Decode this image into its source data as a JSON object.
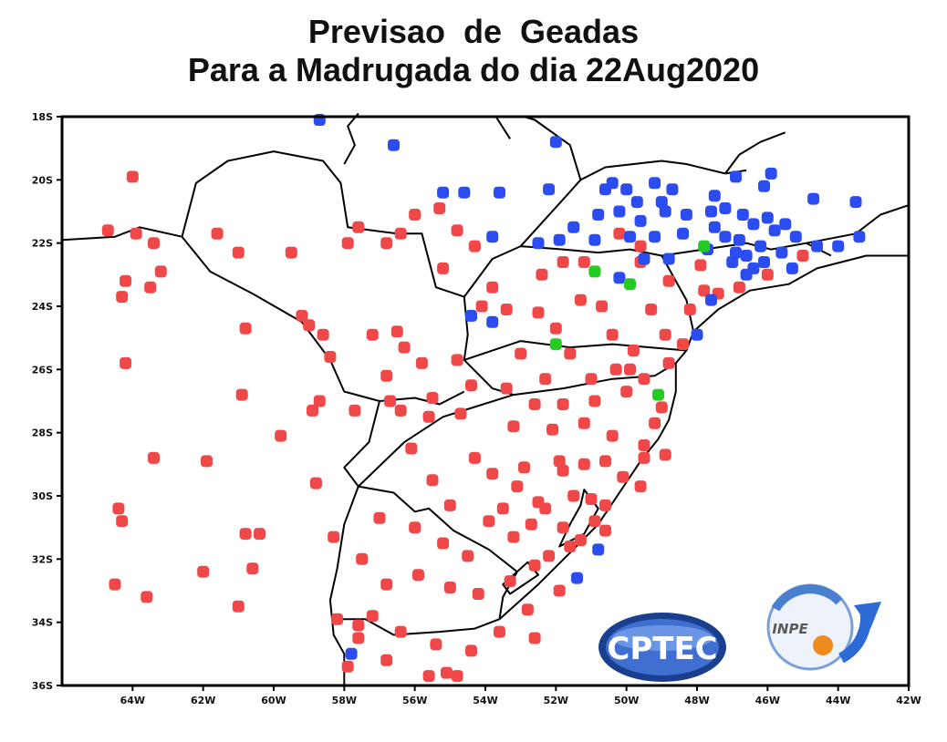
{
  "title": {
    "line1": "Previsao  de  Geadas",
    "line2": "Para a Madrugada do dia 22Aug2020"
  },
  "colors": {
    "frost": "#f04848",
    "no_frost": "#2a4cf0",
    "green": "#22cc22",
    "border": "#000000"
  },
  "axes": {
    "lon_ticks": [
      "64W",
      "62W",
      "60W",
      "58W",
      "56W",
      "54W",
      "52W",
      "50W",
      "48W",
      "46W",
      "44W",
      "42W"
    ],
    "lat_ticks": [
      "18S",
      "20S",
      "22S",
      "24S",
      "26S",
      "28S",
      "30S",
      "32S",
      "34S",
      "36S"
    ],
    "lon_range": [
      -66,
      -42
    ],
    "lat_range": [
      -36.5,
      -18.5
    ]
  },
  "logos": {
    "cptec": "CPTEC",
    "inpe": "INPE"
  },
  "chart_data": {
    "type": "scatter",
    "stations_red": [
      [
        -64.0,
        -20.4
      ],
      [
        -63.9,
        -22.2
      ],
      [
        -63.4,
        -22.5
      ],
      [
        -63.2,
        -23.4
      ],
      [
        -64.7,
        -22.1
      ],
      [
        -63.5,
        -23.9
      ],
      [
        -64.2,
        -23.7
      ],
      [
        -64.3,
        -24.2
      ],
      [
        -61.0,
        -22.8
      ],
      [
        -61.6,
        -22.2
      ],
      [
        -64.2,
        -26.3
      ],
      [
        -63.4,
        -29.3
      ],
      [
        -64.4,
        -30.9
      ],
      [
        -64.3,
        -31.3
      ],
      [
        -64.5,
        -33.3
      ],
      [
        -63.6,
        -33.7
      ],
      [
        -61.9,
        -29.4
      ],
      [
        -62.0,
        -32.9
      ],
      [
        -60.8,
        -31.7
      ],
      [
        -60.4,
        -31.7
      ],
      [
        -60.6,
        -32.8
      ],
      [
        -61.0,
        -34.0
      ],
      [
        -60.9,
        -27.3
      ],
      [
        -60.8,
        -25.2
      ],
      [
        -59.5,
        -22.8
      ],
      [
        -59.2,
        -24.8
      ],
      [
        -58.6,
        -25.4
      ],
      [
        -59.8,
        -28.6
      ],
      [
        -58.9,
        -27.8
      ],
      [
        -58.7,
        -27.5
      ],
      [
        -59.0,
        -25.1
      ],
      [
        -57.6,
        -22.0
      ],
      [
        -56.0,
        -21.6
      ],
      [
        -55.3,
        -21.4
      ],
      [
        -54.8,
        -22.1
      ],
      [
        -56.4,
        -22.2
      ],
      [
        -57.9,
        -22.5
      ],
      [
        -56.8,
        -22.5
      ],
      [
        -54.3,
        -22.6
      ],
      [
        -55.2,
        -23.3
      ],
      [
        -53.8,
        -23.9
      ],
      [
        -54.1,
        -24.5
      ],
      [
        -56.5,
        -25.3
      ],
      [
        -57.2,
        -25.4
      ],
      [
        -56.3,
        -25.8
      ],
      [
        -55.8,
        -26.3
      ],
      [
        -54.8,
        -26.2
      ],
      [
        -56.8,
        -26.7
      ],
      [
        -56.7,
        -27.5
      ],
      [
        -55.5,
        -27.4
      ],
      [
        -54.4,
        -27.0
      ],
      [
        -54.7,
        -27.9
      ],
      [
        -57.7,
        -27.8
      ],
      [
        -56.4,
        -27.8
      ],
      [
        -55.6,
        -28.0
      ],
      [
        -53.4,
        -24.6
      ],
      [
        -52.5,
        -24.7
      ],
      [
        -51.3,
        -24.3
      ],
      [
        -50.7,
        -24.5
      ],
      [
        -52.0,
        -25.2
      ],
      [
        -53.0,
        -26.0
      ],
      [
        -51.6,
        -26.0
      ],
      [
        -50.4,
        -25.4
      ],
      [
        -49.8,
        -25.9
      ],
      [
        -50.3,
        -26.5
      ],
      [
        -51.0,
        -26.8
      ],
      [
        -52.3,
        -26.8
      ],
      [
        -53.4,
        -27.1
      ],
      [
        -52.6,
        -27.6
      ],
      [
        -51.8,
        -27.6
      ],
      [
        -50.9,
        -27.5
      ],
      [
        -49.5,
        -26.8
      ],
      [
        -49.0,
        -27.7
      ],
      [
        -48.8,
        -26.3
      ],
      [
        -50.0,
        -27.2
      ],
      [
        -53.2,
        -28.3
      ],
      [
        -52.1,
        -28.4
      ],
      [
        -51.2,
        -28.2
      ],
      [
        -50.4,
        -28.6
      ],
      [
        -49.5,
        -28.9
      ],
      [
        -48.9,
        -29.2
      ],
      [
        -54.3,
        -29.3
      ],
      [
        -53.8,
        -29.8
      ],
      [
        -52.9,
        -29.6
      ],
      [
        -51.8,
        -29.7
      ],
      [
        -51.2,
        -29.5
      ],
      [
        -50.6,
        -29.4
      ],
      [
        -50.1,
        -29.9
      ],
      [
        -49.6,
        -30.2
      ],
      [
        -55.0,
        -30.8
      ],
      [
        -53.5,
        -30.9
      ],
      [
        -52.5,
        -30.7
      ],
      [
        -51.5,
        -30.5
      ],
      [
        -50.9,
        -31.3
      ],
      [
        -51.8,
        -31.5
      ],
      [
        -53.2,
        -31.8
      ],
      [
        -54.5,
        -32.4
      ],
      [
        -55.2,
        -32.0
      ],
      [
        -56.0,
        -31.5
      ],
      [
        -57.0,
        -31.2
      ],
      [
        -57.5,
        -32.5
      ],
      [
        -56.8,
        -33.3
      ],
      [
        -55.9,
        -33.0
      ],
      [
        -55.0,
        -33.4
      ],
      [
        -54.2,
        -33.6
      ],
      [
        -53.3,
        -33.2
      ],
      [
        -52.8,
        -34.1
      ],
      [
        -57.6,
        -34.6
      ],
      [
        -56.4,
        -34.8
      ],
      [
        -55.4,
        -35.2
      ],
      [
        -54.4,
        -35.4
      ],
      [
        -56.8,
        -35.7
      ],
      [
        -55.6,
        -36.2
      ],
      [
        -55.1,
        -36.1
      ],
      [
        -54.8,
        -36.2
      ],
      [
        -57.9,
        -35.9
      ],
      [
        -57.2,
        -34.3
      ],
      [
        -53.6,
        -34.8
      ],
      [
        -52.6,
        -32.7
      ],
      [
        -51.9,
        -33.5
      ],
      [
        -52.6,
        -35.0
      ],
      [
        -49.6,
        -23.1
      ],
      [
        -48.8,
        -23.7
      ],
      [
        -48.2,
        -24.6
      ],
      [
        -47.8,
        -24.0
      ],
      [
        -49.3,
        -24.6
      ],
      [
        -48.9,
        -25.4
      ],
      [
        -48.4,
        -25.7
      ],
      [
        -49.6,
        -22.6
      ],
      [
        -50.2,
        -22.2
      ],
      [
        -51.2,
        -23.1
      ],
      [
        -51.8,
        -23.1
      ],
      [
        -52.4,
        -23.5
      ],
      [
        -46.8,
        -23.9
      ],
      [
        -47.4,
        -24.1
      ],
      [
        -46.0,
        -23.5
      ],
      [
        -45.0,
        -22.9
      ],
      [
        -47.9,
        -23.2
      ],
      [
        -51.6,
        -32.1
      ],
      [
        -52.2,
        -32.4
      ],
      [
        -51.3,
        -31.9
      ],
      [
        -50.6,
        -30.8
      ],
      [
        -53.9,
        -31.3
      ],
      [
        -58.3,
        -31.8
      ],
      [
        -58.8,
        -30.1
      ],
      [
        -55.5,
        -30.0
      ],
      [
        -56.1,
        -29.0
      ],
      [
        -58.2,
        -34.4
      ],
      [
        -57.6,
        -35.0
      ],
      [
        -58.4,
        -26.1
      ],
      [
        -53.1,
        -30.2
      ],
      [
        -52.3,
        -30.9
      ],
      [
        -50.6,
        -31.6
      ],
      [
        -51.0,
        -30.6
      ],
      [
        -49.5,
        -29.3
      ],
      [
        -49.2,
        -28.2
      ],
      [
        -49.9,
        -26.5
      ],
      [
        -51.9,
        -29.4
      ],
      [
        -52.7,
        -31.4
      ]
    ],
    "stations_blue": [
      [
        -58.7,
        -18.6
      ],
      [
        -56.6,
        -19.4
      ],
      [
        -52.0,
        -19.3
      ],
      [
        -55.2,
        -20.9
      ],
      [
        -54.6,
        -20.9
      ],
      [
        -53.6,
        -20.9
      ],
      [
        -52.2,
        -20.8
      ],
      [
        -50.6,
        -20.8
      ],
      [
        -50.0,
        -20.8
      ],
      [
        -50.4,
        -20.6
      ],
      [
        -49.2,
        -20.6
      ],
      [
        -49.0,
        -21.2
      ],
      [
        -48.7,
        -20.8
      ],
      [
        -50.2,
        -21.5
      ],
      [
        -50.8,
        -21.6
      ],
      [
        -49.6,
        -21.8
      ],
      [
        -47.5,
        -21.0
      ],
      [
        -46.9,
        -20.4
      ],
      [
        -46.1,
        -20.7
      ],
      [
        -45.9,
        -20.3
      ],
      [
        -44.7,
        -21.1
      ],
      [
        -43.5,
        -21.2
      ],
      [
        -48.3,
        -21.6
      ],
      [
        -47.6,
        -21.5
      ],
      [
        -47.2,
        -21.4
      ],
      [
        -46.7,
        -21.6
      ],
      [
        -46.4,
        -21.9
      ],
      [
        -46.0,
        -21.7
      ],
      [
        -45.5,
        -21.9
      ],
      [
        -45.2,
        -22.3
      ],
      [
        -44.6,
        -22.6
      ],
      [
        -44.0,
        -22.6
      ],
      [
        -43.4,
        -22.3
      ],
      [
        -51.5,
        -22.0
      ],
      [
        -53.8,
        -22.3
      ],
      [
        -52.5,
        -22.5
      ],
      [
        -51.9,
        -22.4
      ],
      [
        -50.9,
        -22.4
      ],
      [
        -49.9,
        -22.3
      ],
      [
        -49.2,
        -22.3
      ],
      [
        -48.4,
        -22.2
      ],
      [
        -47.5,
        -22.0
      ],
      [
        -46.8,
        -22.4
      ],
      [
        -46.2,
        -22.6
      ],
      [
        -45.6,
        -22.8
      ],
      [
        -46.6,
        -22.9
      ],
      [
        -47.0,
        -23.1
      ],
      [
        -46.1,
        -23.1
      ],
      [
        -45.3,
        -23.3
      ],
      [
        -49.5,
        -23.0
      ],
      [
        -50.2,
        -23.6
      ],
      [
        -54.4,
        -24.8
      ],
      [
        -53.8,
        -25.0
      ],
      [
        -48.8,
        -23.0
      ],
      [
        -47.6,
        -24.3
      ],
      [
        -46.4,
        -23.3
      ],
      [
        -46.9,
        -22.8
      ],
      [
        -47.7,
        -22.7
      ],
      [
        -48.9,
        -21.5
      ],
      [
        -49.7,
        -21.2
      ],
      [
        -45.8,
        -22.1
      ],
      [
        -47.2,
        -22.3
      ],
      [
        -46.6,
        -23.5
      ],
      [
        -48.0,
        -25.4
      ],
      [
        -50.8,
        -32.2
      ],
      [
        -51.4,
        -33.1
      ],
      [
        -57.8,
        -35.5
      ]
    ],
    "stations_green": [
      [
        -47.8,
        -22.6
      ],
      [
        -50.9,
        -23.4
      ],
      [
        -49.9,
        -23.8
      ],
      [
        -52.0,
        -25.7
      ],
      [
        -49.1,
        -27.3
      ]
    ]
  }
}
